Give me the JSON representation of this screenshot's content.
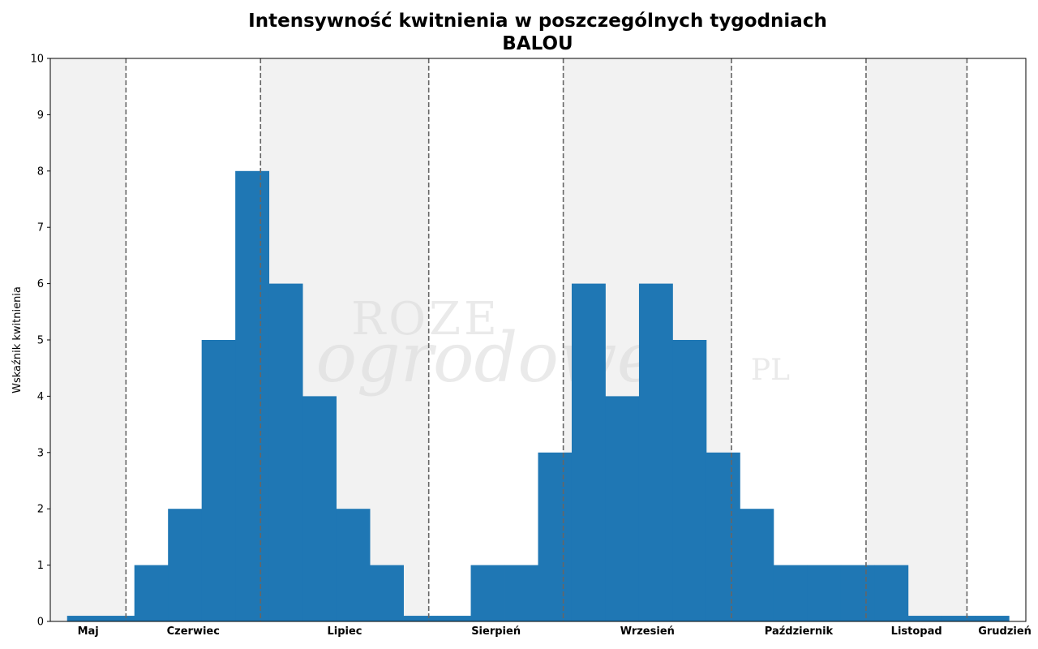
{
  "chart_data": {
    "type": "bar",
    "title": "Intensywność kwitnienia w poszczególnych tygodniach",
    "subtitle": "BALOU",
    "xlabel": "",
    "ylabel": "Wskaźnik kwitnienia",
    "ylim": [
      0,
      10
    ],
    "yticks": [
      0,
      1,
      2,
      3,
      4,
      5,
      6,
      7,
      8,
      9,
      10
    ],
    "grid": false,
    "week_start": 1,
    "week_end": 30,
    "weeks": [
      2,
      3,
      4,
      5,
      6,
      7,
      8,
      9,
      10,
      11,
      12,
      13,
      14,
      15,
      16,
      17,
      18,
      19,
      20,
      21,
      22,
      23,
      24,
      25,
      26,
      27,
      28,
      29
    ],
    "values": [
      0.1,
      0.1,
      1,
      2,
      5,
      8,
      6,
      4,
      2,
      1,
      0.1,
      0.1,
      1,
      1,
      3,
      6,
      4,
      6,
      5,
      3,
      2,
      1,
      1,
      1,
      1,
      0.1,
      0.1,
      0.1
    ],
    "bar_color": "#1f77b4",
    "months": [
      {
        "name": "Maj",
        "start": 1,
        "end": 3.25,
        "shaded": true
      },
      {
        "name": "Czerwiec",
        "start": 3.25,
        "end": 7.25,
        "shaded": false
      },
      {
        "name": "Lipiec",
        "start": 7.25,
        "end": 12.25,
        "shaded": true
      },
      {
        "name": "Sierpień",
        "start": 12.25,
        "end": 16.25,
        "shaded": false
      },
      {
        "name": "Wrzesień",
        "start": 16.25,
        "end": 21.25,
        "shaded": true
      },
      {
        "name": "Październik",
        "start": 21.25,
        "end": 25.25,
        "shaded": false
      },
      {
        "name": "Listopad",
        "start": 25.25,
        "end": 28.25,
        "shaded": true
      },
      {
        "name": "Grudzień",
        "start": 28.25,
        "end": 30.5,
        "shaded": false
      }
    ],
    "month_boundaries": [
      3.25,
      7.25,
      12.25,
      16.25,
      21.25,
      25.25,
      28.25
    ]
  },
  "watermark": {
    "line1": "ROZE",
    "line2": "ogrodowe",
    "line3": "PL"
  },
  "colors": {
    "shade": "#f2f2f2",
    "boundary": "#666666"
  }
}
